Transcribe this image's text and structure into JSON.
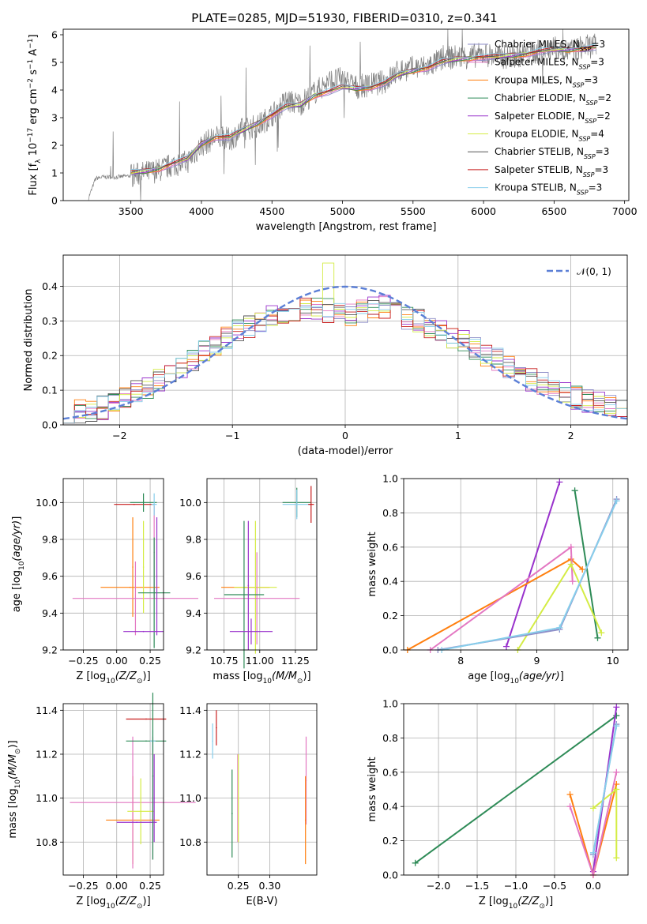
{
  "figure": {
    "title": "PLATE=0285, MJD=51930, FIBERID=0310, z=0.341"
  },
  "chart_data": [
    {
      "id": "spectrum",
      "type": "line",
      "xlabel": "wavelength [Angstrom, rest frame]",
      "ylabel": "Flux [f_λ 10^-17 erg cm^-2 s^-1 A^-1]",
      "xlim": [
        3020,
        7030
      ],
      "ylim": [
        0,
        6.2
      ],
      "xticks": [
        3500,
        4000,
        4500,
        5000,
        5500,
        6000,
        6500,
        7000
      ],
      "yticks": [
        0,
        1,
        2,
        3,
        4,
        5,
        6
      ],
      "data_x": [
        3200,
        3250,
        3300,
        3400,
        3500,
        3600,
        3700,
        3800,
        3900,
        4000,
        4100,
        4200,
        4300,
        4400,
        4500,
        4600,
        4700,
        4800,
        4900,
        5000,
        5100,
        5200,
        5300,
        5400,
        5500,
        5600,
        5700,
        5800,
        5900,
        6000,
        6100,
        6200,
        6300,
        6400,
        6500,
        6600,
        6700,
        6800
      ],
      "data_y": [
        0.1,
        0.8,
        0.85,
        0.85,
        0.9,
        1.0,
        1.1,
        1.3,
        1.4,
        2.0,
        2.3,
        2.2,
        2.6,
        2.7,
        3.1,
        3.6,
        3.5,
        3.9,
        4.3,
        4.4,
        4.1,
        4.2,
        4.3,
        4.7,
        4.8,
        4.85,
        5.1,
        5.2,
        5.2,
        5.3,
        5.2,
        5.2,
        5.3,
        5.4,
        5.5,
        5.4,
        5.55,
        5.6
      ],
      "model_x": [
        3500,
        3600,
        3700,
        3800,
        3900,
        4000,
        4100,
        4200,
        4300,
        4400,
        4500,
        4600,
        4700,
        4800,
        4900,
        5000,
        5100,
        5200,
        5300,
        5400,
        5500,
        5600,
        5700,
        5800,
        5900,
        6000,
        6100,
        6200,
        6300,
        6400,
        6500,
        6600,
        6700,
        6800
      ],
      "model_y": [
        1.0,
        1.05,
        1.15,
        1.35,
        1.5,
        2.05,
        2.3,
        2.3,
        2.55,
        2.8,
        3.1,
        3.4,
        3.45,
        3.8,
        3.95,
        4.1,
        4.05,
        4.1,
        4.25,
        4.55,
        4.7,
        4.8,
        5.0,
        5.1,
        5.15,
        5.2,
        5.2,
        5.25,
        5.3,
        5.4,
        5.45,
        5.45,
        5.5,
        5.55
      ],
      "legend": [
        {
          "label": "Chabrier MILES, N",
          "sub": "SSP",
          "tail": "=3",
          "color": "#8e8ec8"
        },
        {
          "label": "Salpeter MILES, N",
          "sub": "SSP",
          "tail": "=3",
          "color": "#e377c2"
        },
        {
          "label": "Kroupa MILES, N",
          "sub": "SSP",
          "tail": "=3",
          "color": "#ff7f0e"
        },
        {
          "label": "Chabrier ELODIE, N",
          "sub": "SSP",
          "tail": "=2",
          "color": "#2e8b57"
        },
        {
          "label": "Salpeter ELODIE, N",
          "sub": "SSP",
          "tail": "=2",
          "color": "#9932cc"
        },
        {
          "label": "Kroupa ELODIE, N",
          "sub": "SSP",
          "tail": "=4",
          "color": "#d4ec44"
        },
        {
          "label": "Chabrier STELIB, N",
          "sub": "SSP",
          "tail": "=3",
          "color": "#555555"
        },
        {
          "label": "Salpeter STELIB, N",
          "sub": "SSP",
          "tail": "=3",
          "color": "#c81e1e"
        },
        {
          "label": "Kroupa STELIB, N",
          "sub": "SSP",
          "tail": "=3",
          "color": "#87ceeb"
        }
      ]
    },
    {
      "id": "residuals",
      "type": "line",
      "xlabel": "(data-model)/error",
      "ylabel": "Normed distribution",
      "xlim": [
        -2.5,
        2.5
      ],
      "ylim": [
        0,
        0.49
      ],
      "xticks": [
        -2,
        -1,
        0,
        1,
        2
      ],
      "yticks": [
        0.0,
        0.1,
        0.2,
        0.3,
        0.4
      ],
      "legend_label": "𝒩(0, 1)",
      "normal_curve": {
        "mean": 0,
        "sigma": 1
      },
      "hist_bins": [
        -2.5,
        -2.4,
        -2.3,
        -2.2,
        -2.1,
        -2.0,
        -1.9,
        -1.8,
        -1.7,
        -1.6,
        -1.5,
        -1.4,
        -1.3,
        -1.2,
        -1.1,
        -1.0,
        -0.9,
        -0.8,
        -0.7,
        -0.6,
        -0.5,
        -0.4,
        -0.3,
        -0.2,
        -0.1,
        0.0,
        0.1,
        0.2,
        0.3,
        0.4,
        0.5,
        0.6,
        0.7,
        0.8,
        0.9,
        1.0,
        1.1,
        1.2,
        1.3,
        1.4,
        1.5,
        1.6,
        1.7,
        1.8,
        1.9,
        2.0,
        2.1,
        2.2,
        2.3,
        2.4,
        2.5
      ],
      "hist_base": [
        0.03,
        0.04,
        0.04,
        0.05,
        0.06,
        0.08,
        0.1,
        0.11,
        0.13,
        0.14,
        0.17,
        0.19,
        0.21,
        0.23,
        0.25,
        0.27,
        0.28,
        0.3,
        0.31,
        0.32,
        0.33,
        0.34,
        0.34,
        0.33,
        0.32,
        0.32,
        0.33,
        0.34,
        0.34,
        0.33,
        0.31,
        0.3,
        0.28,
        0.27,
        0.25,
        0.24,
        0.22,
        0.2,
        0.19,
        0.17,
        0.15,
        0.13,
        0.12,
        0.1,
        0.09,
        0.08,
        0.07,
        0.06,
        0.05,
        0.05
      ]
    },
    {
      "id": "age-vs-Z",
      "type": "scatter",
      "xlabel": "Z [log10(Z/Z⊙)]",
      "ylabel": "age  [log10(age/yr)]",
      "xlim": [
        -0.4,
        0.35
      ],
      "ylim": [
        9.2,
        10.13
      ],
      "xticks": [
        -0.25,
        0.0,
        0.25
      ],
      "yticks": [
        9.2,
        9.4,
        9.6,
        9.8,
        10.0
      ],
      "points": [
        {
          "x": 0.12,
          "y": 9.65,
          "xerr": 0,
          "yerr": 0.27,
          "color": "#ff7f0e"
        },
        {
          "x": 0.1,
          "y": 9.54,
          "xerr": 0.22,
          "yerr": 0,
          "color": "#ff7f0e"
        },
        {
          "x": 0.14,
          "y": 9.48,
          "xerr": 0.47,
          "yerr": 0.2,
          "color": "#e377c2"
        },
        {
          "x": 0.2,
          "y": 9.65,
          "xerr": 0,
          "yerr": 0.25,
          "color": "#d4ec44"
        },
        {
          "x": 0.28,
          "y": 9.73,
          "xerr": 0,
          "yerr": 0.25,
          "color": "#e377c2"
        },
        {
          "x": 0.28,
          "y": 9.51,
          "xerr": 0.12,
          "yerr": 0.3,
          "color": "#2e8b57"
        },
        {
          "x": 0.2,
          "y": 9.3,
          "xerr": 0.15,
          "yerr": 0,
          "color": "#9932cc"
        },
        {
          "x": 0.3,
          "y": 9.6,
          "xerr": 0,
          "yerr": 0.32,
          "color": "#9932cc"
        },
        {
          "x": 0.13,
          "y": 9.99,
          "xerr": 0.15,
          "yerr": 0,
          "color": "#c81e1e"
        },
        {
          "x": 0.2,
          "y": 10.0,
          "xerr": 0.1,
          "yerr": 0.05,
          "color": "#2e8b57"
        },
        {
          "x": 0.28,
          "y": 9.99,
          "xerr": 0.02,
          "yerr": 0.06,
          "color": "#87ceeb"
        }
      ]
    },
    {
      "id": "age-vs-mass",
      "type": "scatter",
      "xlabel": "mass [log10(M/M⊙)]",
      "ylabel": "",
      "xlim": [
        10.63,
        11.4
      ],
      "ylim": [
        9.2,
        10.13
      ],
      "xticks": [
        10.75,
        11.0,
        11.25
      ],
      "yticks": [
        9.2,
        9.4,
        9.6,
        9.8,
        10.0
      ],
      "points": [
        {
          "x": 10.9,
          "y": 9.54,
          "xerr": 0.17,
          "yerr": 0,
          "color": "#ff7f0e"
        },
        {
          "x": 10.97,
          "y": 9.54,
          "xerr": 0.15,
          "yerr": 0.36,
          "color": "#d4ec44"
        },
        {
          "x": 10.98,
          "y": 9.48,
          "xerr": 0.3,
          "yerr": 0.25,
          "color": "#e377c2"
        },
        {
          "x": 10.89,
          "y": 9.5,
          "xerr": 0.14,
          "yerr": 0.4,
          "color": "#2e8b57"
        },
        {
          "x": 10.92,
          "y": 9.55,
          "xerr": 0,
          "yerr": 0.35,
          "color": "#9932cc"
        },
        {
          "x": 10.94,
          "y": 9.3,
          "xerr": 0.15,
          "yerr": 0.07,
          "color": "#9932cc"
        },
        {
          "x": 11.26,
          "y": 10.0,
          "xerr": 0.1,
          "yerr": 0.08,
          "color": "#2e8b57"
        },
        {
          "x": 11.26,
          "y": 9.99,
          "xerr": 0.1,
          "yerr": 0.08,
          "color": "#87ceeb"
        },
        {
          "x": 11.36,
          "y": 9.99,
          "xerr": 0.02,
          "yerr": 0.1,
          "color": "#c81e1e"
        }
      ]
    },
    {
      "id": "massweight-vs-age",
      "type": "line",
      "xlabel": "age  [log10(age/yr)]",
      "ylabel": "mass weight",
      "xlim": [
        7.25,
        10.2
      ],
      "ylim": [
        0,
        1.0
      ],
      "xticks": [
        8,
        9,
        10
      ],
      "yticks": [
        0.0,
        0.2,
        0.4,
        0.6,
        0.8,
        1.0
      ],
      "series": [
        {
          "color": "#9932cc",
          "x": [
            8.6,
            9.3
          ],
          "y": [
            0.02,
            0.98
          ]
        },
        {
          "color": "#2e8b57",
          "x": [
            9.5,
            9.8
          ],
          "y": [
            0.93,
            0.07
          ]
        },
        {
          "color": "#ff7f0e",
          "x": [
            7.3,
            9.45,
            9.6
          ],
          "y": [
            0.0,
            0.53,
            0.47
          ]
        },
        {
          "color": "#e377c2",
          "x": [
            7.6,
            9.45,
            9.47
          ],
          "y": [
            0.0,
            0.6,
            0.4
          ]
        },
        {
          "color": "#d4ec44",
          "x": [
            8.75,
            9.45,
            9.85
          ],
          "y": [
            0.0,
            0.5,
            0.1
          ]
        },
        {
          "color": "#8e8ec8",
          "x": [
            7.7,
            9.3,
            10.05
          ],
          "y": [
            0.0,
            0.12,
            0.88
          ]
        },
        {
          "color": "#87ceeb",
          "x": [
            7.75,
            9.3,
            10.05
          ],
          "y": [
            0.0,
            0.13,
            0.87
          ]
        }
      ]
    },
    {
      "id": "mass-vs-Z",
      "type": "scatter",
      "xlabel": "Z [log10(Z/Z⊙)]",
      "ylabel": "mass [log10(M/M⊙)]",
      "xlim": [
        -0.4,
        0.35
      ],
      "ylim": [
        10.65,
        11.43
      ],
      "xticks": [
        -0.25,
        0.0,
        0.25
      ],
      "yticks": [
        10.8,
        11.0,
        11.2,
        11.4
      ],
      "points": [
        {
          "x": 0.12,
          "y": 10.9,
          "xerr": 0.2,
          "yerr": 0.2,
          "color": "#ff7f0e"
        },
        {
          "x": 0.12,
          "y": 10.98,
          "xerr": 0.47,
          "yerr": 0.3,
          "color": "#e377c2"
        },
        {
          "x": 0.18,
          "y": 10.94,
          "xerr": 0.1,
          "yerr": 0.15,
          "color": "#d4ec44"
        },
        {
          "x": 0.15,
          "y": 10.89,
          "xerr": 0.15,
          "yerr": 0,
          "color": "#9932cc"
        },
        {
          "x": 0.28,
          "y": 11.0,
          "xerr": 0,
          "yerr": 0.2,
          "color": "#9932cc"
        },
        {
          "x": 0.27,
          "y": 11.0,
          "xerr": 0,
          "yerr": 0.28,
          "color": "#e377c2"
        },
        {
          "x": 0.22,
          "y": 11.26,
          "xerr": 0.15,
          "yerr": 0,
          "color": "#2e8b57"
        },
        {
          "x": 0.22,
          "y": 11.36,
          "xerr": 0.15,
          "yerr": 0,
          "color": "#c81e1e"
        },
        {
          "x": 0.27,
          "y": 11.26,
          "xerr": 0.02,
          "yerr": 0.05,
          "color": "#87ceeb"
        },
        {
          "x": 0.27,
          "y": 11.1,
          "xerr": 0,
          "yerr": 0.38,
          "color": "#2e8b57"
        }
      ]
    },
    {
      "id": "mass-vs-EBV",
      "type": "scatter",
      "xlabel": "E(B-V)",
      "ylabel": "",
      "xlim": [
        0.2,
        0.375
      ],
      "ylim": [
        10.65,
        11.43
      ],
      "xticks": [
        0.25,
        0.3
      ],
      "yticks": [
        10.8,
        11.0,
        11.2,
        11.4
      ],
      "points": [
        {
          "x": 0.209,
          "y": 11.26,
          "xerr": 0,
          "yerr": 0.08,
          "color": "#87ceeb"
        },
        {
          "x": 0.215,
          "y": 11.32,
          "xerr": 0,
          "yerr": 0.08,
          "color": "#c81e1e"
        },
        {
          "x": 0.24,
          "y": 10.93,
          "xerr": 0,
          "yerr": 0.2,
          "color": "#2e8b57"
        },
        {
          "x": 0.249,
          "y": 11.0,
          "xerr": 0,
          "yerr": 0.2,
          "color": "#e377c2"
        },
        {
          "x": 0.25,
          "y": 11.0,
          "xerr": 0,
          "yerr": 0.2,
          "color": "#d4ec44"
        },
        {
          "x": 0.358,
          "y": 11.08,
          "xerr": 0,
          "yerr": 0.2,
          "color": "#e377c2"
        },
        {
          "x": 0.357,
          "y": 10.9,
          "xerr": 0,
          "yerr": 0.2,
          "color": "#ff7f0e"
        }
      ]
    },
    {
      "id": "massweight-vs-Z",
      "type": "line",
      "xlabel": "Z [log10(Z/Z⊙)]",
      "ylabel": "mass weight",
      "xlim": [
        -2.45,
        0.45
      ],
      "ylim": [
        0,
        1.0
      ],
      "xticks": [
        -2.0,
        -1.5,
        -1.0,
        -0.5,
        0.0
      ],
      "yticks": [
        0.0,
        0.2,
        0.4,
        0.6,
        0.8,
        1.0
      ],
      "series": [
        {
          "color": "#2e8b57",
          "x": [
            -2.3,
            0.3
          ],
          "y": [
            0.07,
            0.93
          ]
        },
        {
          "color": "#9932cc",
          "x": [
            0.0,
            0.3
          ],
          "y": [
            0.02,
            0.98
          ]
        },
        {
          "color": "#ff7f0e",
          "x": [
            -0.3,
            0.0,
            0.3
          ],
          "y": [
            0.47,
            0.0,
            0.53
          ]
        },
        {
          "color": "#e377c2",
          "x": [
            -0.3,
            0.0,
            0.3
          ],
          "y": [
            0.4,
            0.0,
            0.6
          ]
        },
        {
          "color": "#d4ec44",
          "x": [
            0.0,
            0.3,
            0.3
          ],
          "y": [
            0.39,
            0.5,
            0.1
          ]
        },
        {
          "color": "#8e8ec8",
          "x": [
            0.0,
            0.3
          ],
          "y": [
            0.12,
            0.88
          ]
        },
        {
          "color": "#87ceeb",
          "x": [
            0.0,
            0.3
          ],
          "y": [
            0.13,
            0.87
          ]
        }
      ]
    }
  ]
}
